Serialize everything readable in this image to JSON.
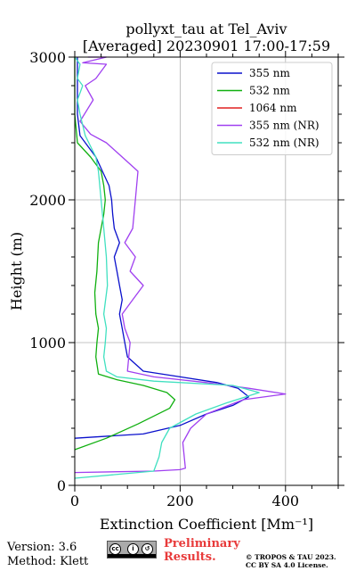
{
  "chart_data": {
    "type": "line",
    "title_line1": "pollyxt_tau at Tel_Aviv",
    "title_line2": "[Averaged] 20230901 17:00-17:59",
    "xlabel": "Extinction Coefficient [Mm⁻¹]",
    "ylabel": "Height (m)",
    "xlim": [
      0,
      500
    ],
    "ylim": [
      0,
      3000
    ],
    "xticks": [
      0,
      200,
      400
    ],
    "yticks": [
      0,
      1000,
      2000,
      3000
    ],
    "grid": true,
    "legend_position": "top-right",
    "series": [
      {
        "name": "355 nm",
        "color": "#0a10cc",
        "x": [
          0,
          130,
          200,
          250,
          300,
          330,
          310,
          270,
          200,
          130,
          100,
          95,
          90,
          85,
          90,
          85,
          80,
          75,
          85,
          75,
          72,
          70,
          65,
          40,
          10,
          5,
          5,
          5
        ],
        "y": [
          330,
          360,
          420,
          500,
          560,
          620,
          680,
          720,
          760,
          800,
          900,
          1000,
          1100,
          1200,
          1300,
          1400,
          1500,
          1600,
          1700,
          1800,
          1900,
          2000,
          2100,
          2300,
          2450,
          2600,
          2800,
          3000
        ]
      },
      {
        "name": "532 nm",
        "color": "#10b010",
        "x": [
          0,
          60,
          120,
          180,
          190,
          175,
          130,
          80,
          45,
          40,
          42,
          45,
          40,
          38,
          42,
          45,
          50,
          55,
          58,
          55,
          50,
          30,
          5,
          0,
          0
        ],
        "y": [
          250,
          330,
          430,
          540,
          600,
          650,
          700,
          740,
          780,
          900,
          1000,
          1100,
          1200,
          1350,
          1500,
          1700,
          1800,
          1900,
          2000,
          2100,
          2200,
          2300,
          2400,
          2600,
          3000
        ]
      },
      {
        "name": "1064 nm",
        "color": "#e02020",
        "x": [],
        "y": []
      },
      {
        "name": "355 nm (NR)",
        "color": "#a040f0",
        "x": [
          0,
          150,
          200,
          210,
          205,
          220,
          250,
          320,
          400,
          330,
          250,
          150,
          100,
          105,
          95,
          90,
          110,
          130,
          105,
          115,
          95,
          110,
          115,
          120,
          90,
          60,
          30,
          10,
          35,
          20,
          40,
          60,
          15,
          60,
          25
        ],
        "y": [
          90,
          100,
          110,
          120,
          300,
          400,
          500,
          600,
          640,
          680,
          720,
          760,
          800,
          1000,
          1100,
          1200,
          1300,
          1400,
          1500,
          1600,
          1700,
          1800,
          2000,
          2200,
          2300,
          2400,
          2460,
          2550,
          2700,
          2800,
          2850,
          2950,
          2960,
          3000,
          3000
        ]
      },
      {
        "name": "532 nm (NR)",
        "color": "#40e0c0",
        "x": [
          0,
          150,
          160,
          165,
          180,
          230,
          290,
          350,
          300,
          150,
          80,
          60,
          55,
          58,
          60,
          55,
          62,
          60,
          55,
          50,
          45,
          40,
          20,
          10,
          5,
          15,
          5,
          10,
          0
        ],
        "y": [
          50,
          100,
          200,
          300,
          400,
          500,
          580,
          650,
          700,
          730,
          760,
          800,
          900,
          1000,
          1100,
          1200,
          1400,
          1600,
          1800,
          2000,
          2200,
          2300,
          2450,
          2600,
          2700,
          2800,
          2850,
          2950,
          3000
        ]
      }
    ]
  },
  "footer": {
    "version": "Version: 3.6",
    "method": "Method: Klett",
    "preliminary_line1": "Preliminary",
    "preliminary_line2": "Results.",
    "license_line1": "© TROPOS & TAU 2023.",
    "license_line2": "CC BY SA 4.0 License.",
    "badge_text": "BY SA"
  }
}
